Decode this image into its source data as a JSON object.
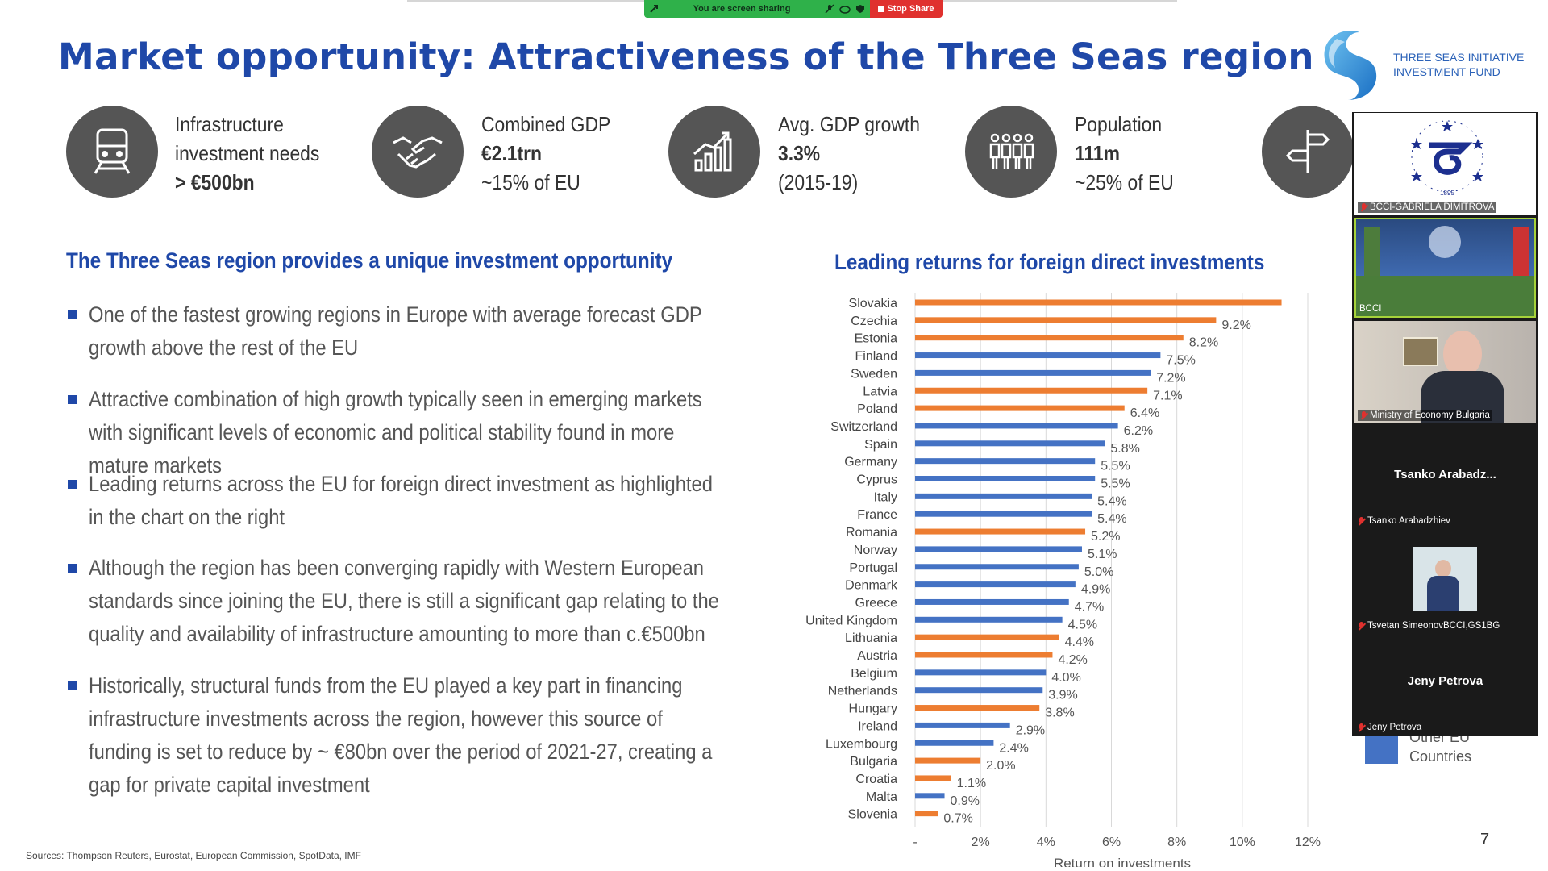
{
  "share_bar": {
    "sharing_text": "You are screen sharing",
    "stop_label": "Stop Share",
    "colors": {
      "green": "#2fb14a",
      "red": "#e0312e"
    }
  },
  "slide": {
    "title": "Market opportunity: Attractiveness of the Three Seas region",
    "logo_text_line1": "THREE SEAS INITIATIVE",
    "logo_text_line2": "INVESTMENT FUND",
    "kpis": [
      {
        "icon": "train-icon",
        "line1": "Infrastructure",
        "line2": "investment needs",
        "line3": "> €500bn"
      },
      {
        "icon": "handshake-icon",
        "line1": "Combined GDP",
        "line2": "€2.1trn",
        "line3": "~15% of EU"
      },
      {
        "icon": "growth-chart-icon",
        "line1": "Avg. GDP growth",
        "line2": "3.3%",
        "line3": "(2015-19)"
      },
      {
        "icon": "people-icon",
        "line1": "Population",
        "line2": "111m",
        "line3": "~25% of EU"
      },
      {
        "icon": "signpost-icon"
      }
    ],
    "left_heading": "The Three Seas region provides a unique investment opportunity",
    "bullets": [
      "One of the fastest growing regions in Europe with average forecast GDP growth above the rest of the EU",
      "Attractive combination of high growth typically seen in emerging markets with significant levels of economic and political stability found in more mature markets",
      "Leading returns across the EU for foreign direct investment as highlighted in the chart on the right",
      "Although the region has been converging rapidly with Western European standards since joining the EU, there is still a significant gap relating to the quality and availability of infrastructure amounting to more than c.€500bn",
      "Historically, structural funds from the EU played a key part in financing infrastructure investments across the region, however this source of funding is set to reduce by ~ €80bn over the period of 2021-27, creating a gap for private capital investment"
    ],
    "chart_title": "Leading returns for foreign direct investments",
    "sources": "Sources: Thompson Reuters, Eurostat, European Commission, SpotData, IMF",
    "page_number": "7",
    "legend_label": "Other EU Countries",
    "colors": {
      "title_blue": "#1f48a8",
      "three_seas": "#ed7d31",
      "other_eu": "#4472c4"
    }
  },
  "chart_data": {
    "type": "bar",
    "orientation": "horizontal",
    "title": "Leading returns for foreign direct investments",
    "xlabel": "Return on investments",
    "ylabel": "",
    "xlim": [
      0,
      12
    ],
    "x_ticks": [
      "-",
      "2%",
      "4%",
      "6%",
      "8%",
      "10%",
      "12%"
    ],
    "grid": true,
    "categories": [
      "Slovakia",
      "Czechia",
      "Estonia",
      "Finland",
      "Sweden",
      "Latvia",
      "Poland",
      "Switzerland",
      "Spain",
      "Germany",
      "Cyprus",
      "Italy",
      "France",
      "Romania",
      "Norway",
      "Portugal",
      "Denmark",
      "Greece",
      "United Kingdom",
      "Lithuania",
      "Austria",
      "Belgium",
      "Netherlands",
      "Hungary",
      "Ireland",
      "Luxembourg",
      "Bulgaria",
      "Croatia",
      "Malta",
      "Slovenia"
    ],
    "values": [
      11.2,
      9.2,
      8.2,
      7.5,
      7.2,
      7.1,
      6.4,
      6.2,
      5.8,
      5.5,
      5.5,
      5.4,
      5.4,
      5.2,
      5.1,
      5.0,
      4.9,
      4.7,
      4.5,
      4.4,
      4.2,
      4.0,
      3.9,
      3.8,
      2.9,
      2.4,
      2.0,
      1.1,
      0.9,
      0.7
    ],
    "labels": [
      null,
      "9.2%",
      "8.2%",
      "7.5%",
      "7.2%",
      "7.1%",
      "6.4%",
      "6.2%",
      "5.8%",
      "5.5%",
      "5.5%",
      "5.4%",
      "5.4%",
      "5.2%",
      "5.1%",
      "5.0%",
      "4.9%",
      "4.7%",
      "4.5%",
      "4.4%",
      "4.2%",
      "4.0%",
      "3.9%",
      "3.8%",
      "2.9%",
      "2.4%",
      "2.0%",
      "1.1%",
      "0.9%",
      "0.7%"
    ],
    "groups": [
      "three_seas",
      "three_seas",
      "three_seas",
      "other_eu",
      "other_eu",
      "three_seas",
      "three_seas",
      "other_eu",
      "other_eu",
      "other_eu",
      "other_eu",
      "other_eu",
      "other_eu",
      "three_seas",
      "other_eu",
      "other_eu",
      "other_eu",
      "other_eu",
      "other_eu",
      "three_seas",
      "three_seas",
      "other_eu",
      "other_eu",
      "three_seas",
      "other_eu",
      "other_eu",
      "three_seas",
      "three_seas",
      "other_eu",
      "three_seas"
    ],
    "legend": [
      "Other EU Countries"
    ]
  },
  "participants": [
    {
      "name": "BCCI-GABRIELA DIMITROVA",
      "kind": "logo"
    },
    {
      "name": "BCCI",
      "kind": "video-room"
    },
    {
      "name": "Ministry of Economy Bulgaria",
      "kind": "video-person"
    },
    {
      "name": "Tsanko Arabadzhiev",
      "display": "Tsanko  Arabadz...",
      "kind": "name"
    },
    {
      "name": "Tsvetan SimeonovBCCI,GS1BG",
      "kind": "thumbnail"
    },
    {
      "name": "Jeny Petrova",
      "display": "Jeny Petrova",
      "kind": "name"
    }
  ]
}
